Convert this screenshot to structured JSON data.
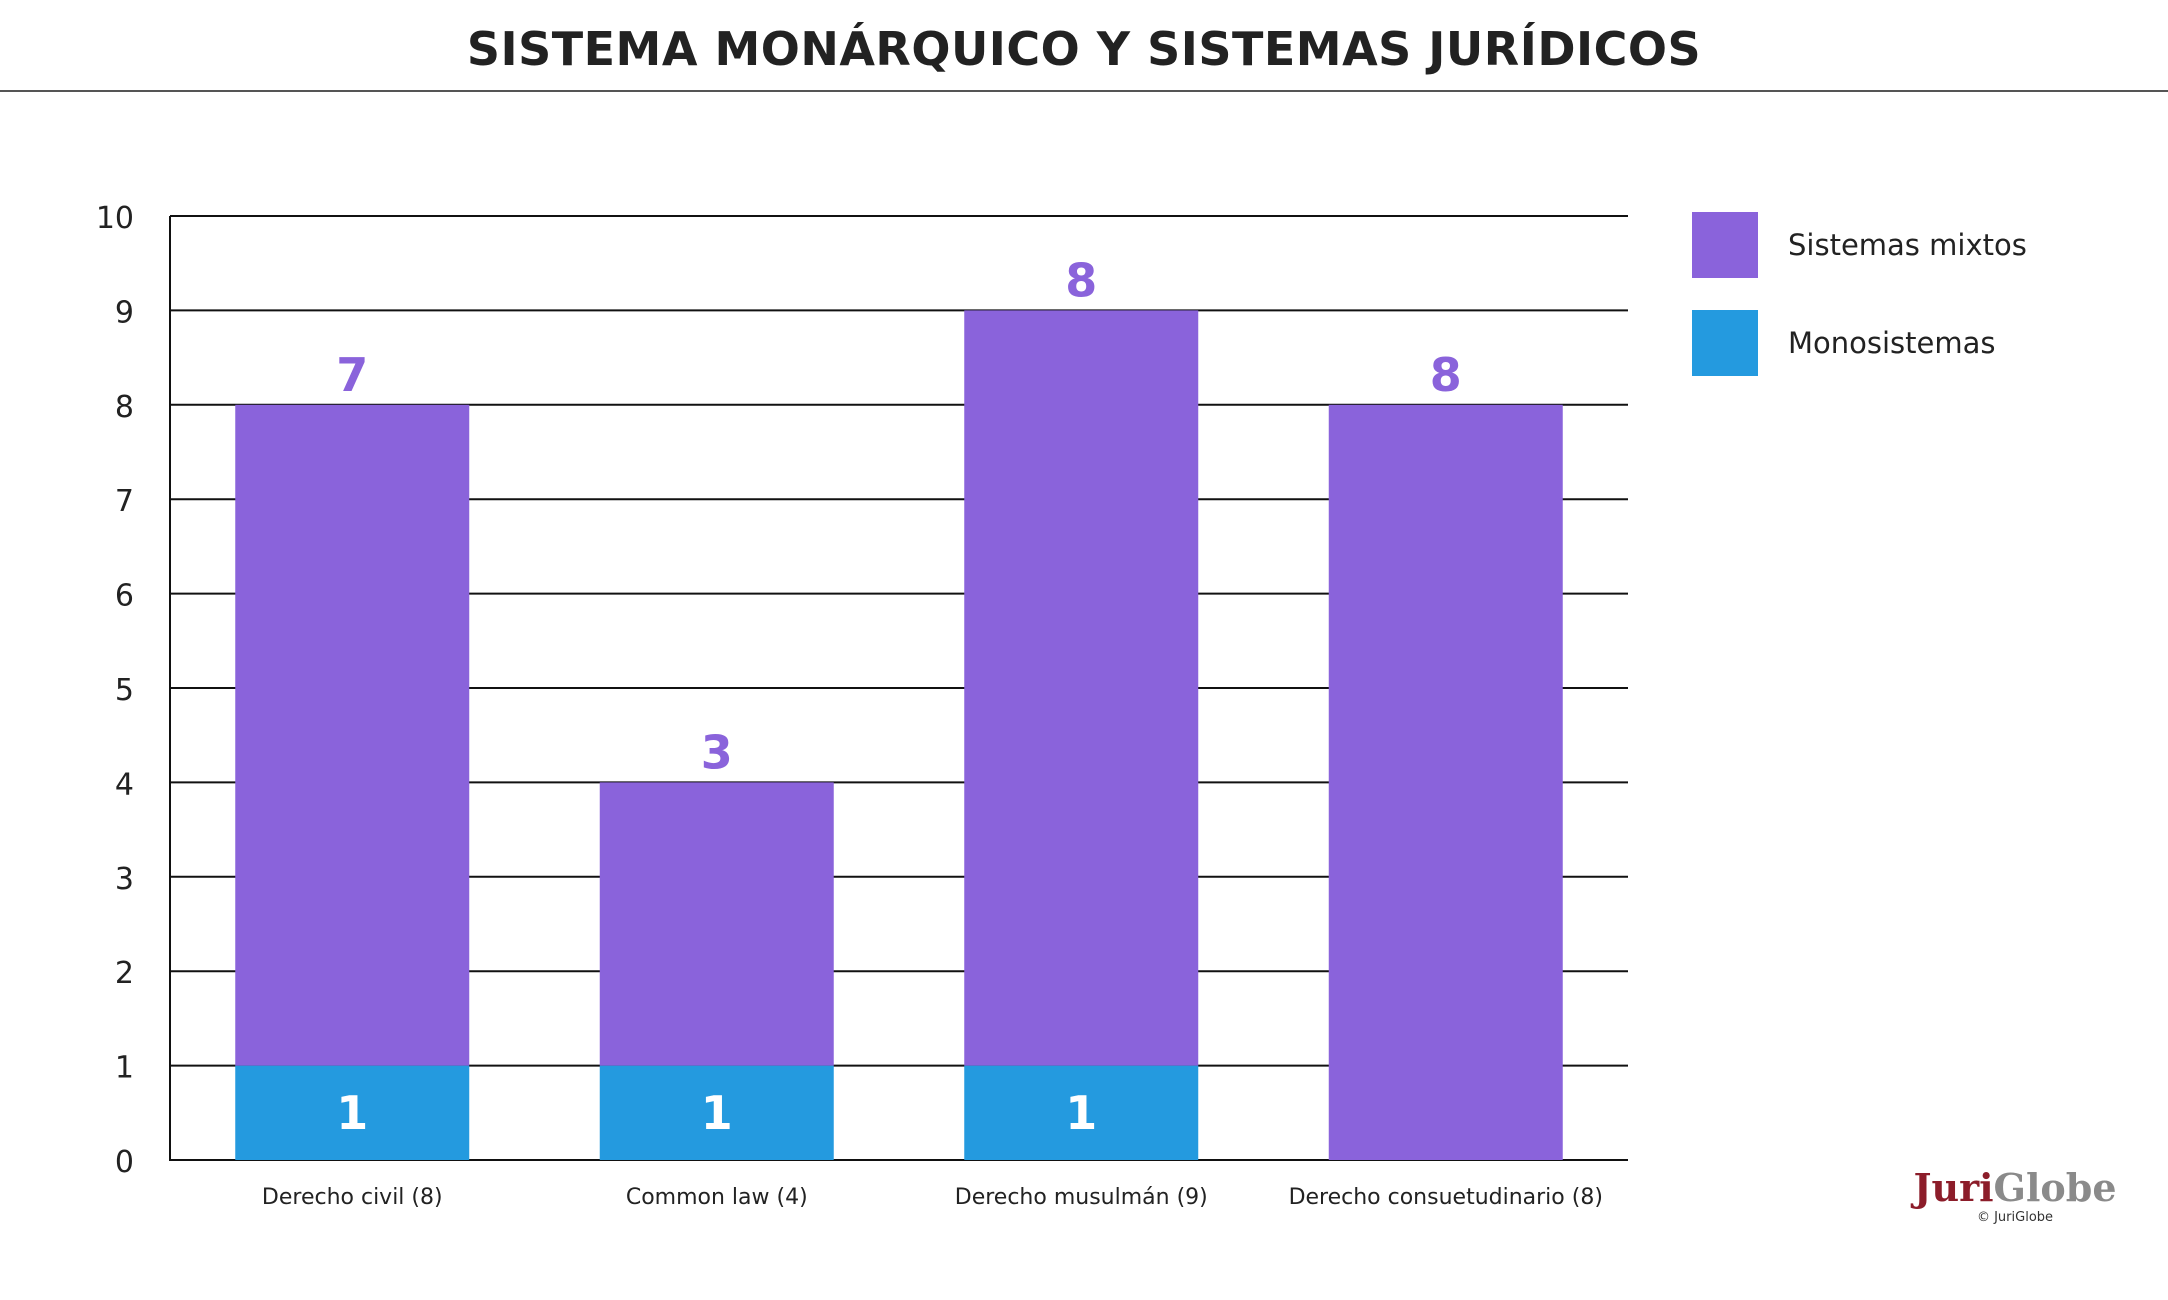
{
  "title": "SISTEMA MONÁRQUICO Y SISTEMAS JURÍDICOS",
  "legend": [
    {
      "label": "Sistemas mixtos",
      "color": "#8a63db"
    },
    {
      "label": "Monosistemas",
      "color": "#249adf"
    }
  ],
  "logo": {
    "text": "JuriGlobe",
    "copyright": "© JuriGlobe"
  },
  "chart_data": {
    "type": "bar",
    "stacked": true,
    "categories": [
      "Derecho civil (8)",
      "Common law (4)",
      "Derecho musulmán (9)",
      "Derecho consuetudinario (8)"
    ],
    "series": [
      {
        "name": "Monosistemas",
        "color": "#249adf",
        "values": [
          1,
          1,
          1,
          0
        ],
        "labels": [
          "1",
          "1",
          "1",
          ""
        ]
      },
      {
        "name": "Sistemas mixtos",
        "color": "#8a63db",
        "values": [
          7,
          3,
          8,
          8
        ],
        "labels": [
          "7",
          "3",
          "8",
          "8"
        ]
      }
    ],
    "ylim": [
      0,
      10
    ],
    "yticks": [
      "0",
      "1",
      "2",
      "3",
      "4",
      "5",
      "6",
      "7",
      "8",
      "9",
      "10"
    ],
    "grid": true,
    "legend_position": "top-right"
  }
}
